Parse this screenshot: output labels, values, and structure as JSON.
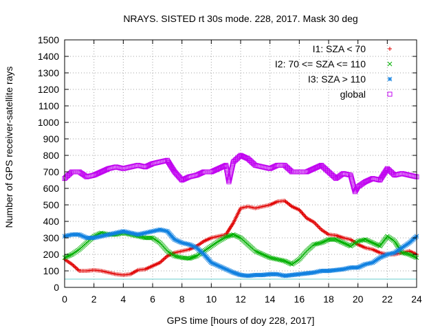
{
  "chart_data": {
    "type": "scatter",
    "title": "NRAYS. SISTED rt 30s mode. 228, 2017. Mask 30 deg",
    "xlabel": "GPS time [hours of doy 228, 2017]",
    "ylabel": "Number of GPS receiver-satellite rays",
    "xlim": [
      0,
      24
    ],
    "ylim": [
      0,
      1500
    ],
    "xticks": [
      "0",
      "2",
      "4",
      "6",
      "8",
      "10",
      "12",
      "14",
      "16",
      "18",
      "20",
      "22",
      "24"
    ],
    "yticks": [
      "0",
      "100",
      "200",
      "300",
      "400",
      "500",
      "600",
      "700",
      "800",
      "900",
      "1000",
      "1100",
      "1200",
      "1300",
      "1400",
      "1500"
    ],
    "grid": true,
    "legend_position": "top-right",
    "threshold_line": {
      "y": 50,
      "color": "#66cccc"
    },
    "series": [
      {
        "name": "I1: SZA < 70",
        "marker": "plus",
        "color": "#e00000",
        "x": [
          0,
          0.5,
          1,
          1.5,
          2,
          2.5,
          3,
          3.5,
          4,
          4.5,
          5,
          5.5,
          6,
          6.5,
          7,
          7.5,
          8,
          8.5,
          9,
          9.5,
          10,
          10.5,
          11,
          11.5,
          12,
          12.5,
          13,
          13.5,
          14,
          14.5,
          15,
          15.5,
          16,
          16.5,
          17,
          17.5,
          18,
          18.5,
          19,
          19.5,
          20,
          20.5,
          21,
          21.5,
          22,
          22.5,
          23,
          23.5,
          24
        ],
        "y": [
          170,
          140,
          100,
          100,
          105,
          100,
          90,
          80,
          75,
          80,
          105,
          110,
          130,
          150,
          190,
          210,
          220,
          230,
          250,
          280,
          300,
          310,
          320,
          390,
          480,
          490,
          480,
          490,
          500,
          520,
          525,
          490,
          470,
          420,
          395,
          350,
          320,
          315,
          300,
          290,
          260,
          240,
          230,
          210,
          200,
          200,
          210,
          220,
          200
        ]
      },
      {
        "name": "I2: 70 <= SZA <= 110",
        "marker": "x",
        "color": "#00b000",
        "x": [
          0,
          0.5,
          1,
          1.5,
          2,
          2.5,
          3,
          3.5,
          4,
          4.5,
          5,
          5.5,
          6,
          6.5,
          7,
          7.5,
          8,
          8.5,
          9,
          9.5,
          10,
          10.5,
          11,
          11.5,
          12,
          12.5,
          13,
          13.5,
          14,
          14.5,
          15,
          15.5,
          16,
          16.5,
          17,
          17.5,
          18,
          18.5,
          19,
          19.5,
          20,
          20.5,
          21,
          21.5,
          22,
          22.5,
          23,
          23.5,
          24
        ],
        "y": [
          180,
          200,
          230,
          270,
          310,
          330,
          320,
          320,
          330,
          320,
          310,
          300,
          300,
          270,
          220,
          190,
          180,
          175,
          190,
          220,
          250,
          280,
          305,
          320,
          300,
          260,
          220,
          200,
          180,
          170,
          160,
          140,
          170,
          220,
          260,
          270,
          290,
          290,
          270,
          250,
          280,
          290,
          270,
          250,
          310,
          280,
          210,
          200,
          180
        ]
      },
      {
        "name": "I3: SZA > 110",
        "marker": "star",
        "color": "#1080e0",
        "x": [
          0,
          0.5,
          1,
          1.5,
          2,
          2.5,
          3,
          3.5,
          4,
          4.5,
          5,
          5.5,
          6,
          6.5,
          7,
          7.5,
          8,
          8.5,
          9,
          9.5,
          10,
          10.5,
          11,
          11.5,
          12,
          12.5,
          13,
          13.5,
          14,
          14.5,
          15,
          15.5,
          16,
          16.5,
          17,
          17.5,
          18,
          18.5,
          19,
          19.5,
          20,
          20.5,
          21,
          21.5,
          22,
          22.5,
          23,
          23.5,
          24
        ],
        "y": [
          310,
          320,
          320,
          300,
          300,
          310,
          320,
          330,
          340,
          330,
          320,
          330,
          340,
          350,
          340,
          290,
          270,
          260,
          240,
          200,
          150,
          130,
          110,
          90,
          75,
          70,
          75,
          75,
          80,
          80,
          70,
          75,
          80,
          85,
          90,
          100,
          100,
          105,
          110,
          120,
          120,
          140,
          150,
          180,
          200,
          210,
          240,
          270,
          310
        ]
      },
      {
        "name": "global",
        "marker": "square",
        "color": "#c000f0",
        "x": [
          0,
          0.5,
          1,
          1.5,
          2,
          2.5,
          3,
          3.5,
          4,
          4.5,
          5,
          5.5,
          6,
          6.5,
          7,
          7.5,
          8,
          8.5,
          9,
          9.5,
          10,
          10.5,
          11,
          11.2,
          11.5,
          12,
          12.5,
          13,
          13.5,
          14,
          14.5,
          15,
          15.5,
          16,
          16.5,
          17,
          17.5,
          18,
          18.5,
          19,
          19.5,
          19.8,
          20,
          20.5,
          21,
          21.5,
          22,
          22.5,
          23,
          23.5,
          24
        ],
        "y": [
          660,
          700,
          700,
          670,
          680,
          700,
          720,
          730,
          720,
          730,
          740,
          730,
          750,
          760,
          770,
          700,
          650,
          670,
          680,
          700,
          700,
          720,
          740,
          640,
          760,
          800,
          780,
          740,
          730,
          720,
          740,
          740,
          700,
          700,
          700,
          720,
          740,
          700,
          660,
          690,
          680,
          580,
          610,
          640,
          660,
          650,
          720,
          680,
          690,
          680,
          670
        ]
      }
    ]
  }
}
